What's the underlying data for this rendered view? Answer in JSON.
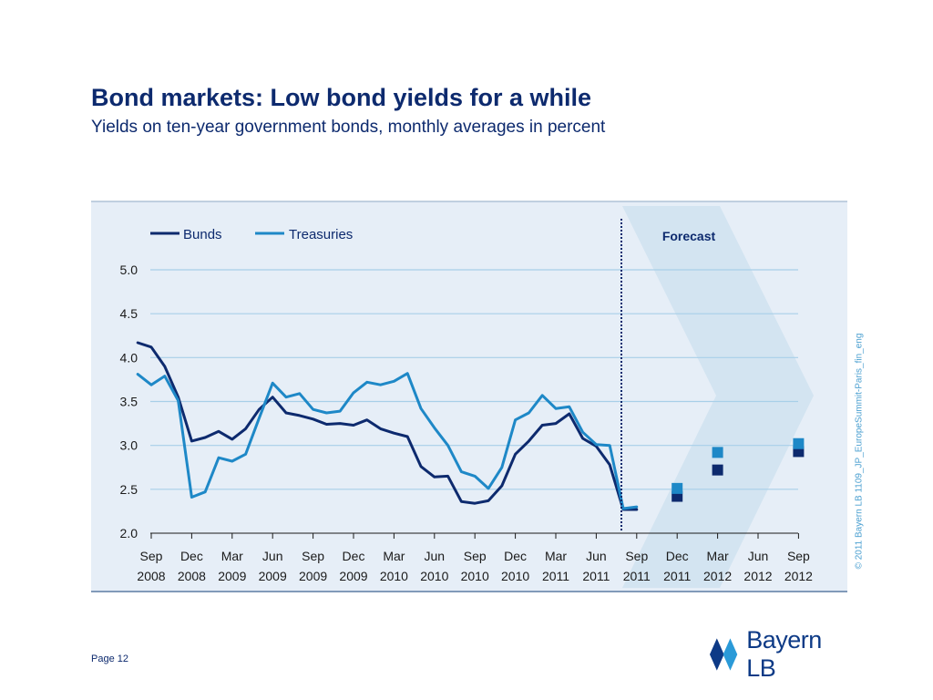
{
  "slide": {
    "title": "Bond markets: Low bond yields for a while",
    "subtitle": "Yields on ten-year government bonds, monthly averages in percent",
    "copyright": "© 2011 Bayern LB  1109_JP_EuropeSummit-Paris_fin_eng",
    "page_label": "Page 12",
    "logo_text": "Bayern LB"
  },
  "colors": {
    "bunds": "#0d2a6e",
    "treasuries": "#1e88c7",
    "panel": "#e6eef7",
    "forecast_band": "#d3e4f1",
    "grid": "#a8cfe8",
    "text": "#0d2a6e",
    "logo": "#0d3a86"
  },
  "chart_data": {
    "type": "line",
    "title": "",
    "xlabel": "",
    "ylabel": "",
    "ylim": [
      2.0,
      5.0
    ],
    "yticks": [
      "5.0",
      "4.5",
      "4.0",
      "3.5",
      "3.0",
      "2.5",
      "2.0"
    ],
    "x_tick_labels": [
      [
        "Sep",
        "2008"
      ],
      [
        "Dec",
        "2008"
      ],
      [
        "Mar",
        "2009"
      ],
      [
        "Jun",
        "2009"
      ],
      [
        "Sep",
        "2009"
      ],
      [
        "Dec",
        "2009"
      ],
      [
        "Mar",
        "2010"
      ],
      [
        "Jun",
        "2010"
      ],
      [
        "Sep",
        "2010"
      ],
      [
        "Dec",
        "2010"
      ],
      [
        "Mar",
        "2011"
      ],
      [
        "Jun",
        "2011"
      ],
      [
        "Sep",
        "2011"
      ],
      [
        "Dec",
        "2011"
      ],
      [
        "Mar",
        "2012"
      ],
      [
        "Jun",
        "2012"
      ],
      [
        "Sep",
        "2012"
      ]
    ],
    "x_start": "2008-09",
    "grid": true,
    "legend_position": "top-left",
    "forecast_label": "Forecast",
    "forecast_start": "2011-09",
    "series": [
      {
        "name": "Bunds",
        "x": [
          "2008-08",
          "2008-09",
          "2008-10",
          "2008-11",
          "2008-12",
          "2009-01",
          "2009-02",
          "2009-03",
          "2009-04",
          "2009-05",
          "2009-06",
          "2009-07",
          "2009-08",
          "2009-09",
          "2009-10",
          "2009-11",
          "2009-12",
          "2010-01",
          "2010-02",
          "2010-03",
          "2010-04",
          "2010-05",
          "2010-06",
          "2010-07",
          "2010-08",
          "2010-09",
          "2010-10",
          "2010-11",
          "2010-12",
          "2011-01",
          "2011-02",
          "2011-03",
          "2011-04",
          "2011-05",
          "2011-06",
          "2011-07",
          "2011-08",
          "2011-09"
        ],
        "values": [
          4.17,
          4.12,
          3.9,
          3.55,
          3.05,
          3.09,
          3.16,
          3.07,
          3.19,
          3.41,
          3.55,
          3.37,
          3.34,
          3.3,
          3.24,
          3.25,
          3.23,
          3.29,
          3.19,
          3.14,
          3.1,
          2.76,
          2.64,
          2.65,
          2.36,
          2.34,
          2.37,
          2.54,
          2.9,
          3.05,
          3.23,
          3.25,
          3.36,
          3.08,
          2.99,
          2.78,
          2.27,
          2.27
        ]
      },
      {
        "name": "Treasuries",
        "x": [
          "2008-08",
          "2008-09",
          "2008-10",
          "2008-11",
          "2008-12",
          "2009-01",
          "2009-02",
          "2009-03",
          "2009-04",
          "2009-05",
          "2009-06",
          "2009-07",
          "2009-08",
          "2009-09",
          "2009-10",
          "2009-11",
          "2009-12",
          "2010-01",
          "2010-02",
          "2010-03",
          "2010-04",
          "2010-05",
          "2010-06",
          "2010-07",
          "2010-08",
          "2010-09",
          "2010-10",
          "2010-11",
          "2010-12",
          "2011-01",
          "2011-02",
          "2011-03",
          "2011-04",
          "2011-05",
          "2011-06",
          "2011-07",
          "2011-08",
          "2011-09"
        ],
        "values": [
          3.81,
          3.69,
          3.79,
          3.51,
          2.41,
          2.47,
          2.86,
          2.82,
          2.9,
          3.31,
          3.71,
          3.55,
          3.59,
          3.41,
          3.37,
          3.39,
          3.6,
          3.72,
          3.69,
          3.73,
          3.82,
          3.42,
          3.2,
          3.0,
          2.7,
          2.65,
          2.51,
          2.75,
          3.29,
          3.37,
          3.57,
          3.42,
          3.44,
          3.15,
          3.01,
          3.0,
          2.28,
          2.3
        ]
      }
    ],
    "forecasts": [
      {
        "name": "Bunds",
        "x": [
          "2011-12",
          "2012-03",
          "2012-09"
        ],
        "values": [
          2.42,
          2.72,
          2.93
        ]
      },
      {
        "name": "Treasuries",
        "x": [
          "2011-12",
          "2012-03",
          "2012-09"
        ],
        "values": [
          2.51,
          2.92,
          3.02
        ]
      }
    ]
  }
}
